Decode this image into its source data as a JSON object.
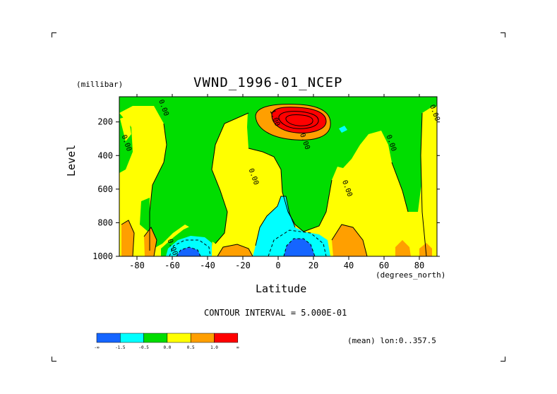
{
  "figure": {
    "units_label": "(millibar)",
    "x_units_label": "(degrees_north)",
    "contour_interval_text": "CONTOUR INTERVAL = 5.000E-01",
    "mean_label": "(mean) lon:0..357.5"
  },
  "chart_data": {
    "type": "heatmap",
    "title": "VWND_1996-01_NCEP",
    "xlabel": "Latitude",
    "ylabel": "Level",
    "xlim": [
      -90,
      90
    ],
    "ylim": [
      1000,
      50
    ],
    "y_reversed": true,
    "grid": false,
    "x_ticks": [
      -80,
      -60,
      -40,
      -20,
      0,
      20,
      40,
      60,
      80
    ],
    "y_ticks": [
      200,
      400,
      600,
      800,
      1000
    ],
    "colorbar": {
      "colors": [
        "#1565ff",
        "#00ffff",
        "#00dd00",
        "#ffff00",
        "#ff9f00",
        "#ff0000"
      ],
      "labels": [
        "-∞",
        "-1.5",
        "-0.5",
        "0.0",
        "0.5",
        "1.0",
        "∞"
      ]
    },
    "contour_labels": [
      {
        "text": "0.00",
        "lat": -66,
        "level": 120
      },
      {
        "text": "0.00",
        "lat": -87,
        "level": 330
      },
      {
        "text": "0.00",
        "lat": -15,
        "level": 530
      },
      {
        "text": "1.00",
        "lat": -3,
        "level": 180
      },
      {
        "text": "0.00",
        "lat": 14,
        "level": 320
      },
      {
        "text": "0.00",
        "lat": 38,
        "level": 600
      },
      {
        "text": "0.00",
        "lat": 63,
        "level": 330
      },
      {
        "text": "0.00",
        "lat": 90,
        "level": 150
      },
      {
        "text": "0.00",
        "lat": -61,
        "level": 950
      }
    ]
  }
}
